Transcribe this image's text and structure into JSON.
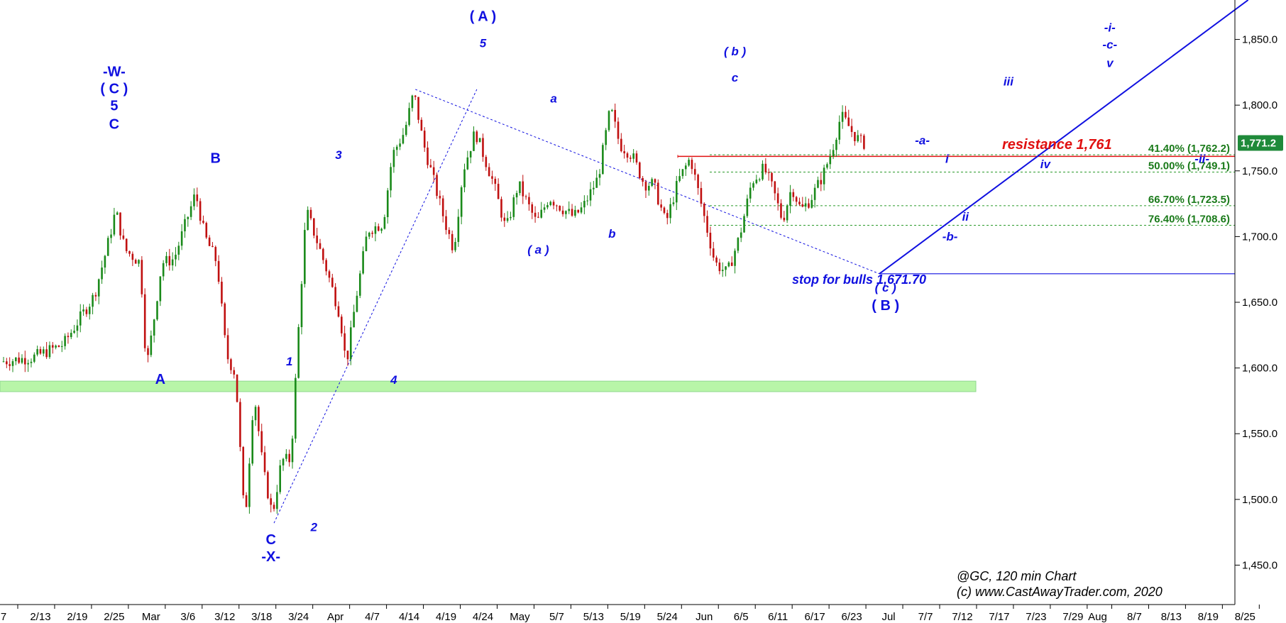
{
  "chart_data": {
    "type": "candlestick",
    "symbol_label": "@GC, 120 min Chart",
    "copyright": "(c) www.CastAwayTrader.com, 2020",
    "y_axis": {
      "ylim": [
        1420,
        1880
      ],
      "ticks": [
        "1,450.0",
        "1,500.0",
        "1,550.0",
        "1,600.0",
        "1,650.0",
        "1,700.0",
        "1,750.0",
        "1,800.0",
        "1,850.0"
      ],
      "tick_values": [
        1450,
        1500,
        1550,
        1600,
        1650,
        1700,
        1750,
        1800,
        1850
      ]
    },
    "x_axis": {
      "labels": [
        "7",
        "2/13",
        "2/19",
        "2/25",
        "Mar",
        "3/6",
        "3/12",
        "3/18",
        "3/24",
        "Apr",
        "4/7",
        "4/14",
        "4/19",
        "4/24",
        "May",
        "5/7",
        "5/13",
        "5/19",
        "5/24",
        "Jun",
        "6/5",
        "6/11",
        "6/17",
        "6/23",
        "Jul",
        "7/7",
        "7/12",
        "7/17",
        "7/23",
        "7/29",
        "Aug",
        "8/7",
        "8/13",
        "8/19",
        "8/25"
      ],
      "label_index": [
        0,
        12,
        24,
        36,
        48,
        60,
        72,
        84,
        96,
        108,
        120,
        132,
        144,
        156,
        168,
        180,
        192,
        204,
        216,
        228,
        240,
        252,
        264,
        276,
        288,
        300,
        312,
        324,
        336,
        348,
        356,
        368,
        380,
        392,
        404
      ]
    },
    "last_price": "1,771.2",
    "last_price_value": 1771.2,
    "price_path": [
      [
        0,
        1605
      ],
      [
        10,
        1608
      ],
      [
        20,
        1618
      ],
      [
        30,
        1655
      ],
      [
        34,
        1690
      ],
      [
        37,
        1720
      ],
      [
        40,
        1690
      ],
      [
        45,
        1680
      ],
      [
        47,
        1600
      ],
      [
        49,
        1630
      ],
      [
        52,
        1680
      ],
      [
        56,
        1683
      ],
      [
        60,
        1712
      ],
      [
        63,
        1733
      ],
      [
        66,
        1700
      ],
      [
        70,
        1680
      ],
      [
        73,
        1610
      ],
      [
        76,
        1595
      ],
      [
        79,
        1480
      ],
      [
        82,
        1582
      ],
      [
        85,
        1522
      ],
      [
        88,
        1488
      ],
      [
        91,
        1530
      ],
      [
        94,
        1530
      ],
      [
        97,
        1650
      ],
      [
        99,
        1720
      ],
      [
        102,
        1700
      ],
      [
        106,
        1672
      ],
      [
        110,
        1640
      ],
      [
        112,
        1602
      ],
      [
        115,
        1650
      ],
      [
        119,
        1705
      ],
      [
        124,
        1710
      ],
      [
        127,
        1762
      ],
      [
        131,
        1780
      ],
      [
        134,
        1810
      ],
      [
        137,
        1772
      ],
      [
        141,
        1738
      ],
      [
        144,
        1712
      ],
      [
        147,
        1690
      ],
      [
        150,
        1750
      ],
      [
        154,
        1780
      ],
      [
        157,
        1760
      ],
      [
        160,
        1740
      ],
      [
        164,
        1705
      ],
      [
        168,
        1740
      ],
      [
        171,
        1725
      ],
      [
        174,
        1710
      ],
      [
        178,
        1730
      ],
      [
        182,
        1722
      ],
      [
        186,
        1715
      ],
      [
        189,
        1722
      ],
      [
        194,
        1745
      ],
      [
        198,
        1798
      ],
      [
        201,
        1770
      ],
      [
        205,
        1762
      ],
      [
        209,
        1740
      ],
      [
        212,
        1740
      ],
      [
        216,
        1710
      ],
      [
        220,
        1742
      ],
      [
        224,
        1760
      ],
      [
        228,
        1720
      ],
      [
        232,
        1680
      ],
      [
        236,
        1672
      ],
      [
        240,
        1700
      ],
      [
        244,
        1742
      ],
      [
        248,
        1752
      ],
      [
        251,
        1735
      ],
      [
        254,
        1712
      ],
      [
        257,
        1738
      ],
      [
        260,
        1720
      ],
      [
        263,
        1728
      ],
      [
        267,
        1746
      ],
      [
        270,
        1765
      ],
      [
        273,
        1792
      ],
      [
        275,
        1786
      ],
      [
        277,
        1778
      ],
      [
        280,
        1771
      ]
    ],
    "horizontal_lines": [
      {
        "name": "resistance",
        "value": 1761,
        "color": "#e01010"
      },
      {
        "name": "stop",
        "value": 1671.7,
        "color": "#1010e0"
      }
    ],
    "fib_levels": [
      {
        "label": "41.40% (1,762.2)",
        "value": 1762.2
      },
      {
        "label": "50.00% (1,749.1)",
        "value": 1749.1
      },
      {
        "label": "66.70% (1,723.5)",
        "value": 1723.5
      },
      {
        "label": "76.40% (1,708.6)",
        "value": 1708.6
      }
    ],
    "support_zone": [
      1582,
      1590
    ],
    "annotations": {
      "resistance": "resistance 1,761",
      "stop": "stop for bulls 1,671.70"
    },
    "wave_labels": [
      {
        "text": "-W-",
        "i": 36,
        "v": 1822,
        "style": "bold"
      },
      {
        "text": "( C )",
        "i": 36,
        "v": 1809,
        "style": "bold"
      },
      {
        "text": "5",
        "i": 36,
        "v": 1796,
        "style": "bold"
      },
      {
        "text": "C",
        "i": 36,
        "v": 1782,
        "style": "bold"
      },
      {
        "text": "A",
        "i": 51,
        "v": 1588,
        "style": "bold"
      },
      {
        "text": "B",
        "i": 69,
        "v": 1756,
        "style": "bold"
      },
      {
        "text": "1",
        "i": 93,
        "v": 1602,
        "style": "italic"
      },
      {
        "text": "C",
        "i": 87,
        "v": 1466,
        "style": "bold"
      },
      {
        "text": "-X-",
        "i": 87,
        "v": 1453,
        "style": "bold"
      },
      {
        "text": "2",
        "i": 101,
        "v": 1476,
        "style": "italic"
      },
      {
        "text": "3",
        "i": 109,
        "v": 1759,
        "style": "italic"
      },
      {
        "text": "4",
        "i": 127,
        "v": 1588,
        "style": "italic"
      },
      {
        "text": "( A )",
        "i": 156,
        "v": 1864,
        "style": "bold"
      },
      {
        "text": "5",
        "i": 156,
        "v": 1844,
        "style": "italic"
      },
      {
        "text": "a",
        "i": 179,
        "v": 1802,
        "style": "italic"
      },
      {
        "text": "( a )",
        "i": 174,
        "v": 1687,
        "style": "italic"
      },
      {
        "text": "b",
        "i": 198,
        "v": 1699,
        "style": "italic"
      },
      {
        "text": "( b )",
        "i": 238,
        "v": 1838,
        "style": "italic"
      },
      {
        "text": "c",
        "i": 238,
        "v": 1818,
        "style": "italic"
      },
      {
        "text": "( c )",
        "i": 287,
        "v": 1658,
        "style": "italic"
      },
      {
        "text": "( B )",
        "i": 287,
        "v": 1644,
        "style": "bold"
      },
      {
        "text": "-a-",
        "i": 299,
        "v": 1770,
        "style": "italic"
      },
      {
        "text": "i",
        "i": 307,
        "v": 1756,
        "style": "italic"
      },
      {
        "text": "ii",
        "i": 313,
        "v": 1712,
        "style": "italic"
      },
      {
        "text": "-b-",
        "i": 308,
        "v": 1697,
        "style": "italic"
      },
      {
        "text": "iii",
        "i": 327,
        "v": 1815,
        "style": "italic"
      },
      {
        "text": "iv",
        "i": 339,
        "v": 1752,
        "style": "italic"
      },
      {
        "text": "-ii-",
        "i": 390,
        "v": 1756,
        "style": "italic"
      },
      {
        "text": "-i-",
        "i": 360,
        "v": 1856,
        "style": "italic"
      },
      {
        "text": "-c-",
        "i": 360,
        "v": 1843,
        "style": "italic"
      },
      {
        "text": "v",
        "i": 360,
        "v": 1829,
        "style": "italic"
      }
    ],
    "trendlines": [
      {
        "name": "wave-c-channel",
        "from": [
          134,
          1812
        ],
        "to": [
          285,
          1671.7
        ],
        "dashed": true
      },
      {
        "name": "rally-channel",
        "from": [
          88,
          1482
        ],
        "to": [
          154,
          1812
        ],
        "dashed": true
      },
      {
        "name": "uptrend-line",
        "from": [
          285,
          1671.7
        ],
        "to": [
          405,
          1880
        ],
        "dashed": false
      }
    ],
    "grid": false,
    "legend": "none"
  },
  "colors": {
    "up_candle": "#1a8a1a",
    "down_candle": "#c01010",
    "wave_blue": "#1010e0",
    "fib_green": "#1a7a1a",
    "zone_green": "#b8f5a8",
    "price_tag": "#1f8a3a"
  }
}
